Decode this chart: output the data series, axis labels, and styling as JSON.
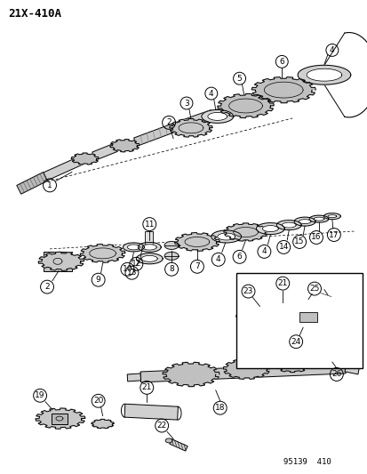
{
  "title": "21X-410A",
  "footer": "95139  410",
  "bg_color": "#ffffff",
  "line_color": "#000000",
  "figsize": [
    4.14,
    5.33
  ],
  "dpi": 100,
  "shaft_color": "#c8c8c8",
  "gear_fill": "#d8d8d8",
  "ring_fill": "#e8e8e8"
}
